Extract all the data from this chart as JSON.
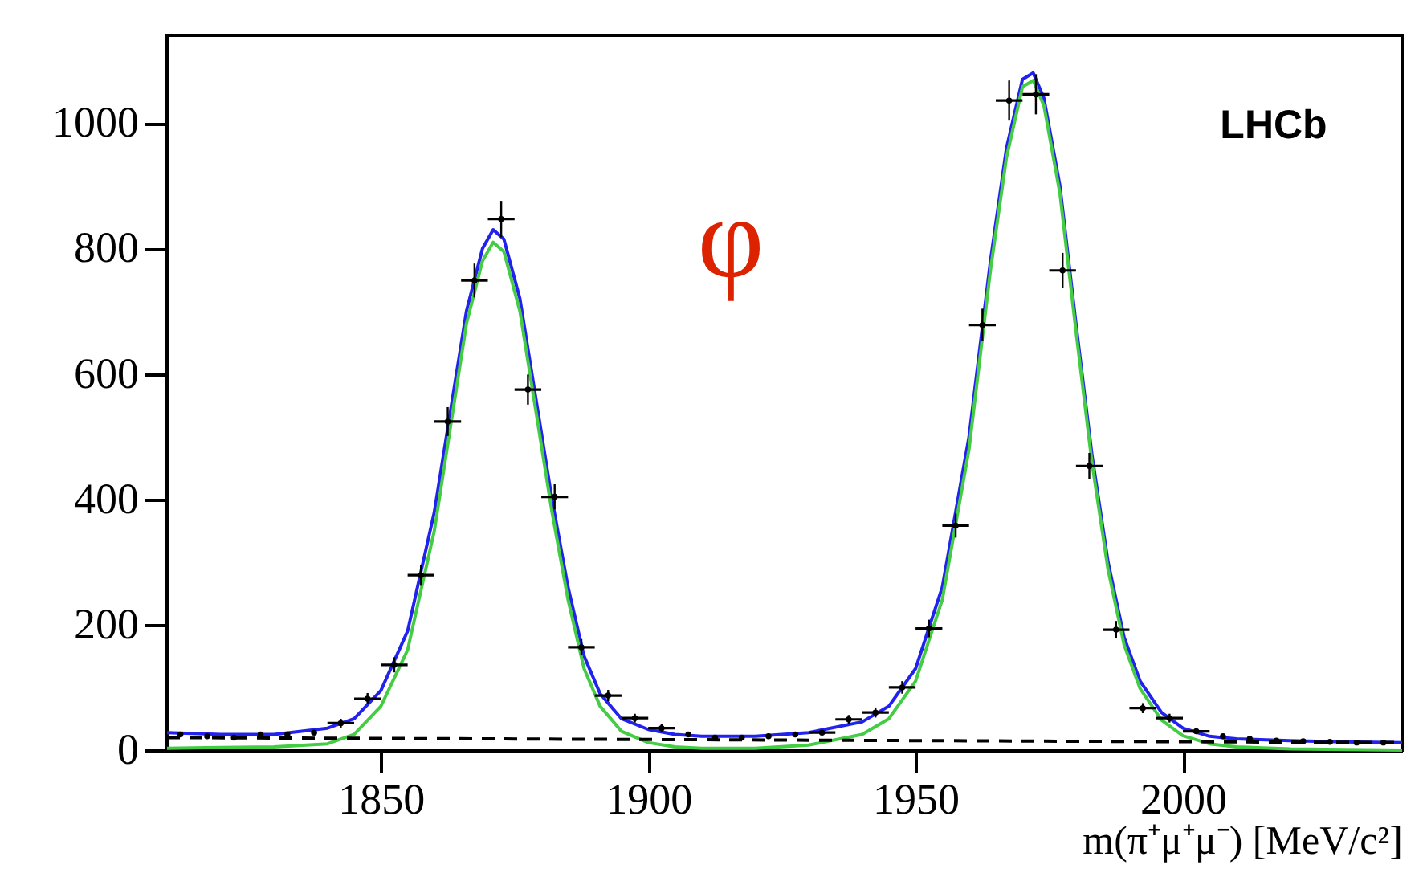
{
  "chart_data": {
    "type": "scatter",
    "xlabel": "m(π⁺μ⁺μ⁻) [MeV/c²]",
    "annotations": [
      "φ",
      "LHCb"
    ],
    "xlim": [
      1810,
      2041
    ],
    "xticks": [
      1850,
      1900,
      1950,
      2000
    ],
    "ylim": [
      0,
      1140
    ],
    "yticks": [
      0,
      200,
      400,
      600,
      800,
      1000
    ],
    "series": [
      {
        "marker": "circle",
        "color": "#000000",
        "x": [
          1812.5,
          1817.5,
          1822.5,
          1827.5,
          1832.5,
          1837.5,
          1842.5,
          1847.5,
          1852.5,
          1857.5,
          1862.5,
          1867.5,
          1872.5,
          1877.5,
          1882.5,
          1887.5,
          1892.5,
          1897.5,
          1902.5,
          1907.5,
          1912.5,
          1917.5,
          1922.5,
          1927.5,
          1932.5,
          1937.5,
          1942.5,
          1947.5,
          1952.5,
          1957.5,
          1962.5,
          1967.5,
          1972.5,
          1977.5,
          1982.5,
          1987.5,
          1992.5,
          1997.5,
          2002.5,
          2007.5,
          2012.5,
          2017.5,
          2022.5,
          2027.5,
          2032.5,
          2037.5
        ],
        "values": [
          25,
          22,
          20,
          25,
          25,
          28,
          43,
          82,
          136,
          279,
          524,
          749,
          847,
          575,
          404,
          164,
          87,
          51,
          35,
          25,
          20,
          20,
          22,
          25,
          28,
          49,
          60,
          100,
          194,
          358,
          678,
          1036,
          1046,
          765,
          453,
          192,
          67,
          51,
          30,
          22,
          18,
          15,
          14,
          13,
          12,
          12
        ],
        "errors": [
          null,
          null,
          null,
          null,
          null,
          null,
          7,
          9,
          12,
          17,
          23,
          27,
          29,
          24,
          20,
          13,
          9,
          7,
          6,
          null,
          null,
          null,
          null,
          null,
          null,
          7,
          8,
          10,
          14,
          19,
          26,
          32,
          32,
          28,
          21,
          14,
          8,
          7,
          null,
          null,
          null,
          null,
          null,
          null,
          null,
          null
        ],
        "xerrors": [
          null,
          null,
          null,
          null,
          null,
          null,
          2.5,
          2.5,
          2.5,
          2.5,
          2.5,
          2.5,
          2.5,
          2.5,
          2.5,
          2.5,
          2.5,
          2.5,
          2.5,
          null,
          null,
          null,
          null,
          null,
          2.5,
          2.5,
          2.5,
          2.5,
          2.5,
          2.5,
          2.5,
          2.5,
          2.5,
          2.5,
          2.5,
          2.5,
          2.5,
          2.5,
          2.5,
          null,
          null,
          null,
          null,
          null,
          null,
          null
        ]
      },
      {
        "type": "line",
        "color": "#2222ee",
        "x": [
          1810,
          1820,
          1830,
          1840,
          1845,
          1850,
          1855,
          1860,
          1863,
          1866,
          1869,
          1871,
          1873,
          1876,
          1879,
          1882,
          1885,
          1888,
          1891,
          1895,
          1900,
          1905,
          1910,
          1920,
          1930,
          1940,
          1945,
          1950,
          1955,
          1960,
          1964,
          1967,
          1970,
          1972,
          1974,
          1977,
          1980,
          1983,
          1986,
          1989,
          1992,
          1996,
          2000,
          2005,
          2010,
          2020,
          2030,
          2041
        ],
        "values": [
          28,
          25,
          25,
          35,
          50,
          95,
          190,
          380,
          540,
          700,
          800,
          830,
          815,
          720,
          560,
          400,
          260,
          150,
          90,
          50,
          33,
          25,
          22,
          22,
          28,
          45,
          70,
          130,
          260,
          500,
          780,
          960,
          1070,
          1080,
          1040,
          900,
          680,
          470,
          300,
          180,
          110,
          60,
          35,
          22,
          18,
          15,
          13,
          12
        ]
      },
      {
        "type": "line",
        "color": "#44cc44",
        "x": [
          1810,
          1830,
          1840,
          1845,
          1850,
          1855,
          1860,
          1863,
          1866,
          1869,
          1871,
          1873,
          1876,
          1879,
          1882,
          1885,
          1888,
          1891,
          1895,
          1900,
          1905,
          1910,
          1920,
          1930,
          1940,
          1945,
          1950,
          1955,
          1960,
          1964,
          1967,
          1970,
          1972,
          1974,
          1977,
          1980,
          1983,
          1986,
          1989,
          1992,
          1996,
          2000,
          2005,
          2010,
          2020,
          2030,
          2041
        ],
        "values": [
          3,
          5,
          10,
          25,
          70,
          160,
          350,
          515,
          680,
          780,
          810,
          795,
          700,
          540,
          380,
          240,
          130,
          70,
          30,
          12,
          5,
          3,
          3,
          8,
          25,
          50,
          110,
          240,
          480,
          765,
          945,
          1058,
          1068,
          1028,
          888,
          668,
          458,
          288,
          168,
          98,
          48,
          23,
          10,
          5,
          2,
          1,
          0
        ]
      },
      {
        "type": "line",
        "color": "#000000",
        "line_style": "dashed",
        "x": [
          1810,
          2041
        ],
        "values": [
          20,
          12
        ]
      }
    ]
  }
}
